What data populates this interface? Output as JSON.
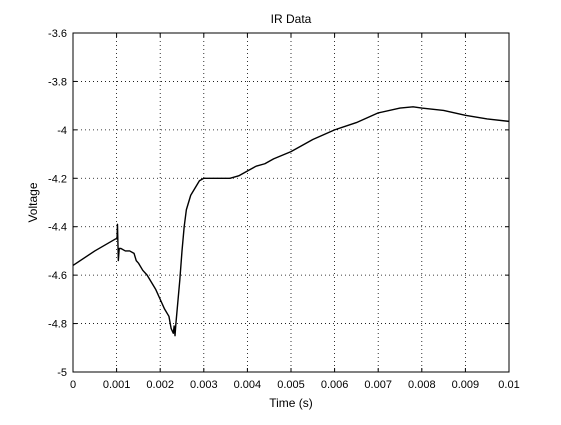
{
  "chart_data": {
    "type": "line",
    "title": "IR Data",
    "xlabel": "Time (s)",
    "ylabel": "Voltage",
    "xlim": [
      0,
      0.01
    ],
    "ylim": [
      -5,
      -3.6
    ],
    "grid": true,
    "grid_style": "dotted",
    "xticks": [
      0,
      0.001,
      0.002,
      0.003,
      0.004,
      0.005,
      0.006,
      0.007,
      0.008,
      0.009,
      0.01
    ],
    "xtick_labels": [
      "0",
      "0.001",
      "0.002",
      "0.003",
      "0.004",
      "0.005",
      "0.006",
      "0.007",
      "0.008",
      "0.009",
      "0.01"
    ],
    "yticks": [
      -3.6,
      -3.8,
      -4,
      -4.2,
      -4.4,
      -4.6,
      -4.8,
      -5
    ],
    "ytick_labels": [
      "-3.6",
      "-3.8",
      "-4",
      "-4.2",
      "-4.4",
      "-4.6",
      "-4.8",
      "-5"
    ],
    "series": [
      {
        "color": "#000000",
        "x": [
          0,
          0.0005,
          0.00098,
          0.00101,
          0.00102,
          0.00104,
          0.00106,
          0.0011,
          0.0012,
          0.0013,
          0.0014,
          0.00145,
          0.0015,
          0.0016,
          0.0017,
          0.0018,
          0.0019,
          0.002,
          0.0021,
          0.0022,
          0.00225,
          0.0023,
          0.00232,
          0.00234,
          0.00236,
          0.0024,
          0.00245,
          0.0025,
          0.00255,
          0.0026,
          0.0027,
          0.0028,
          0.0029,
          0.003,
          0.0032,
          0.0034,
          0.0036,
          0.0038,
          0.004,
          0.0042,
          0.0044,
          0.0046,
          0.005,
          0.0055,
          0.006,
          0.0065,
          0.007,
          0.0075,
          0.0078,
          0.008,
          0.0085,
          0.009,
          0.0095,
          0.01
        ],
        "y": [
          -4.56,
          -4.5,
          -4.45,
          -4.45,
          -4.39,
          -4.54,
          -4.49,
          -4.49,
          -4.5,
          -4.5,
          -4.51,
          -4.54,
          -4.55,
          -4.58,
          -4.6,
          -4.63,
          -4.66,
          -4.7,
          -4.74,
          -4.77,
          -4.82,
          -4.84,
          -4.81,
          -4.85,
          -4.8,
          -4.72,
          -4.62,
          -4.5,
          -4.4,
          -4.33,
          -4.27,
          -4.24,
          -4.21,
          -4.2,
          -4.2,
          -4.2,
          -4.2,
          -4.19,
          -4.17,
          -4.15,
          -4.14,
          -4.12,
          -4.09,
          -4.04,
          -4.0,
          -3.97,
          -3.93,
          -3.91,
          -3.905,
          -3.91,
          -3.92,
          -3.94,
          -3.955,
          -3.965
        ]
      }
    ]
  }
}
